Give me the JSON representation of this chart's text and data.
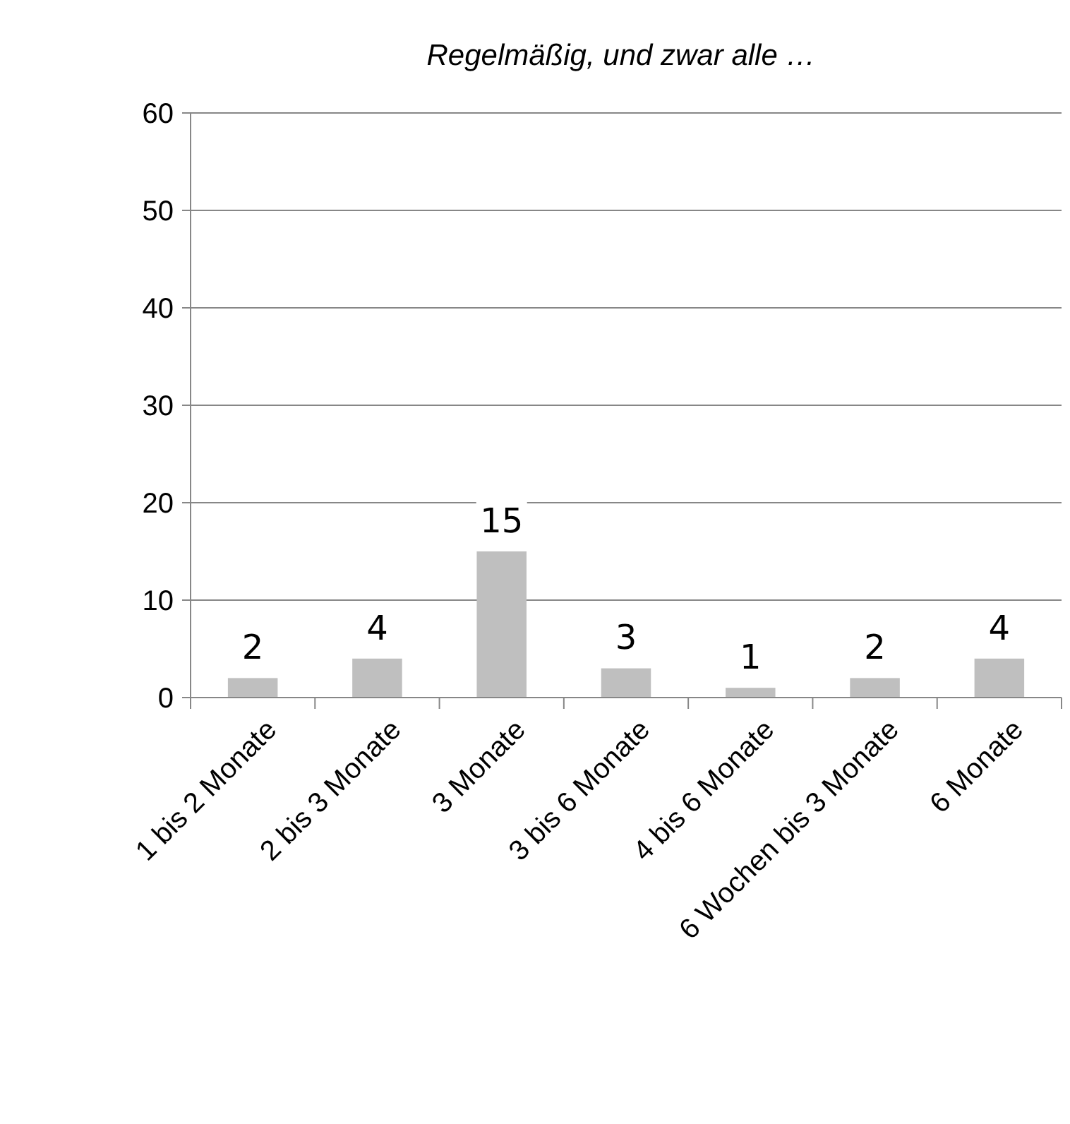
{
  "chart_data": {
    "type": "bar",
    "title": "Regelmäßig, und zwar alle …",
    "categories": [
      "1 bis 2 Monate",
      "2 bis 3 Monate",
      "3 Monate",
      "3 bis 6 Monate",
      "4 bis 6 Monate",
      "6 Wochen bis 3 Monate",
      "6 Monate"
    ],
    "values": [
      2,
      4,
      15,
      3,
      1,
      2,
      4
    ],
    "color": "#bfbfbf",
    "ylim": [
      0,
      60
    ],
    "yticks": [
      0,
      10,
      20,
      30,
      40,
      50,
      60
    ],
    "grid": "y",
    "data_labels": true
  }
}
